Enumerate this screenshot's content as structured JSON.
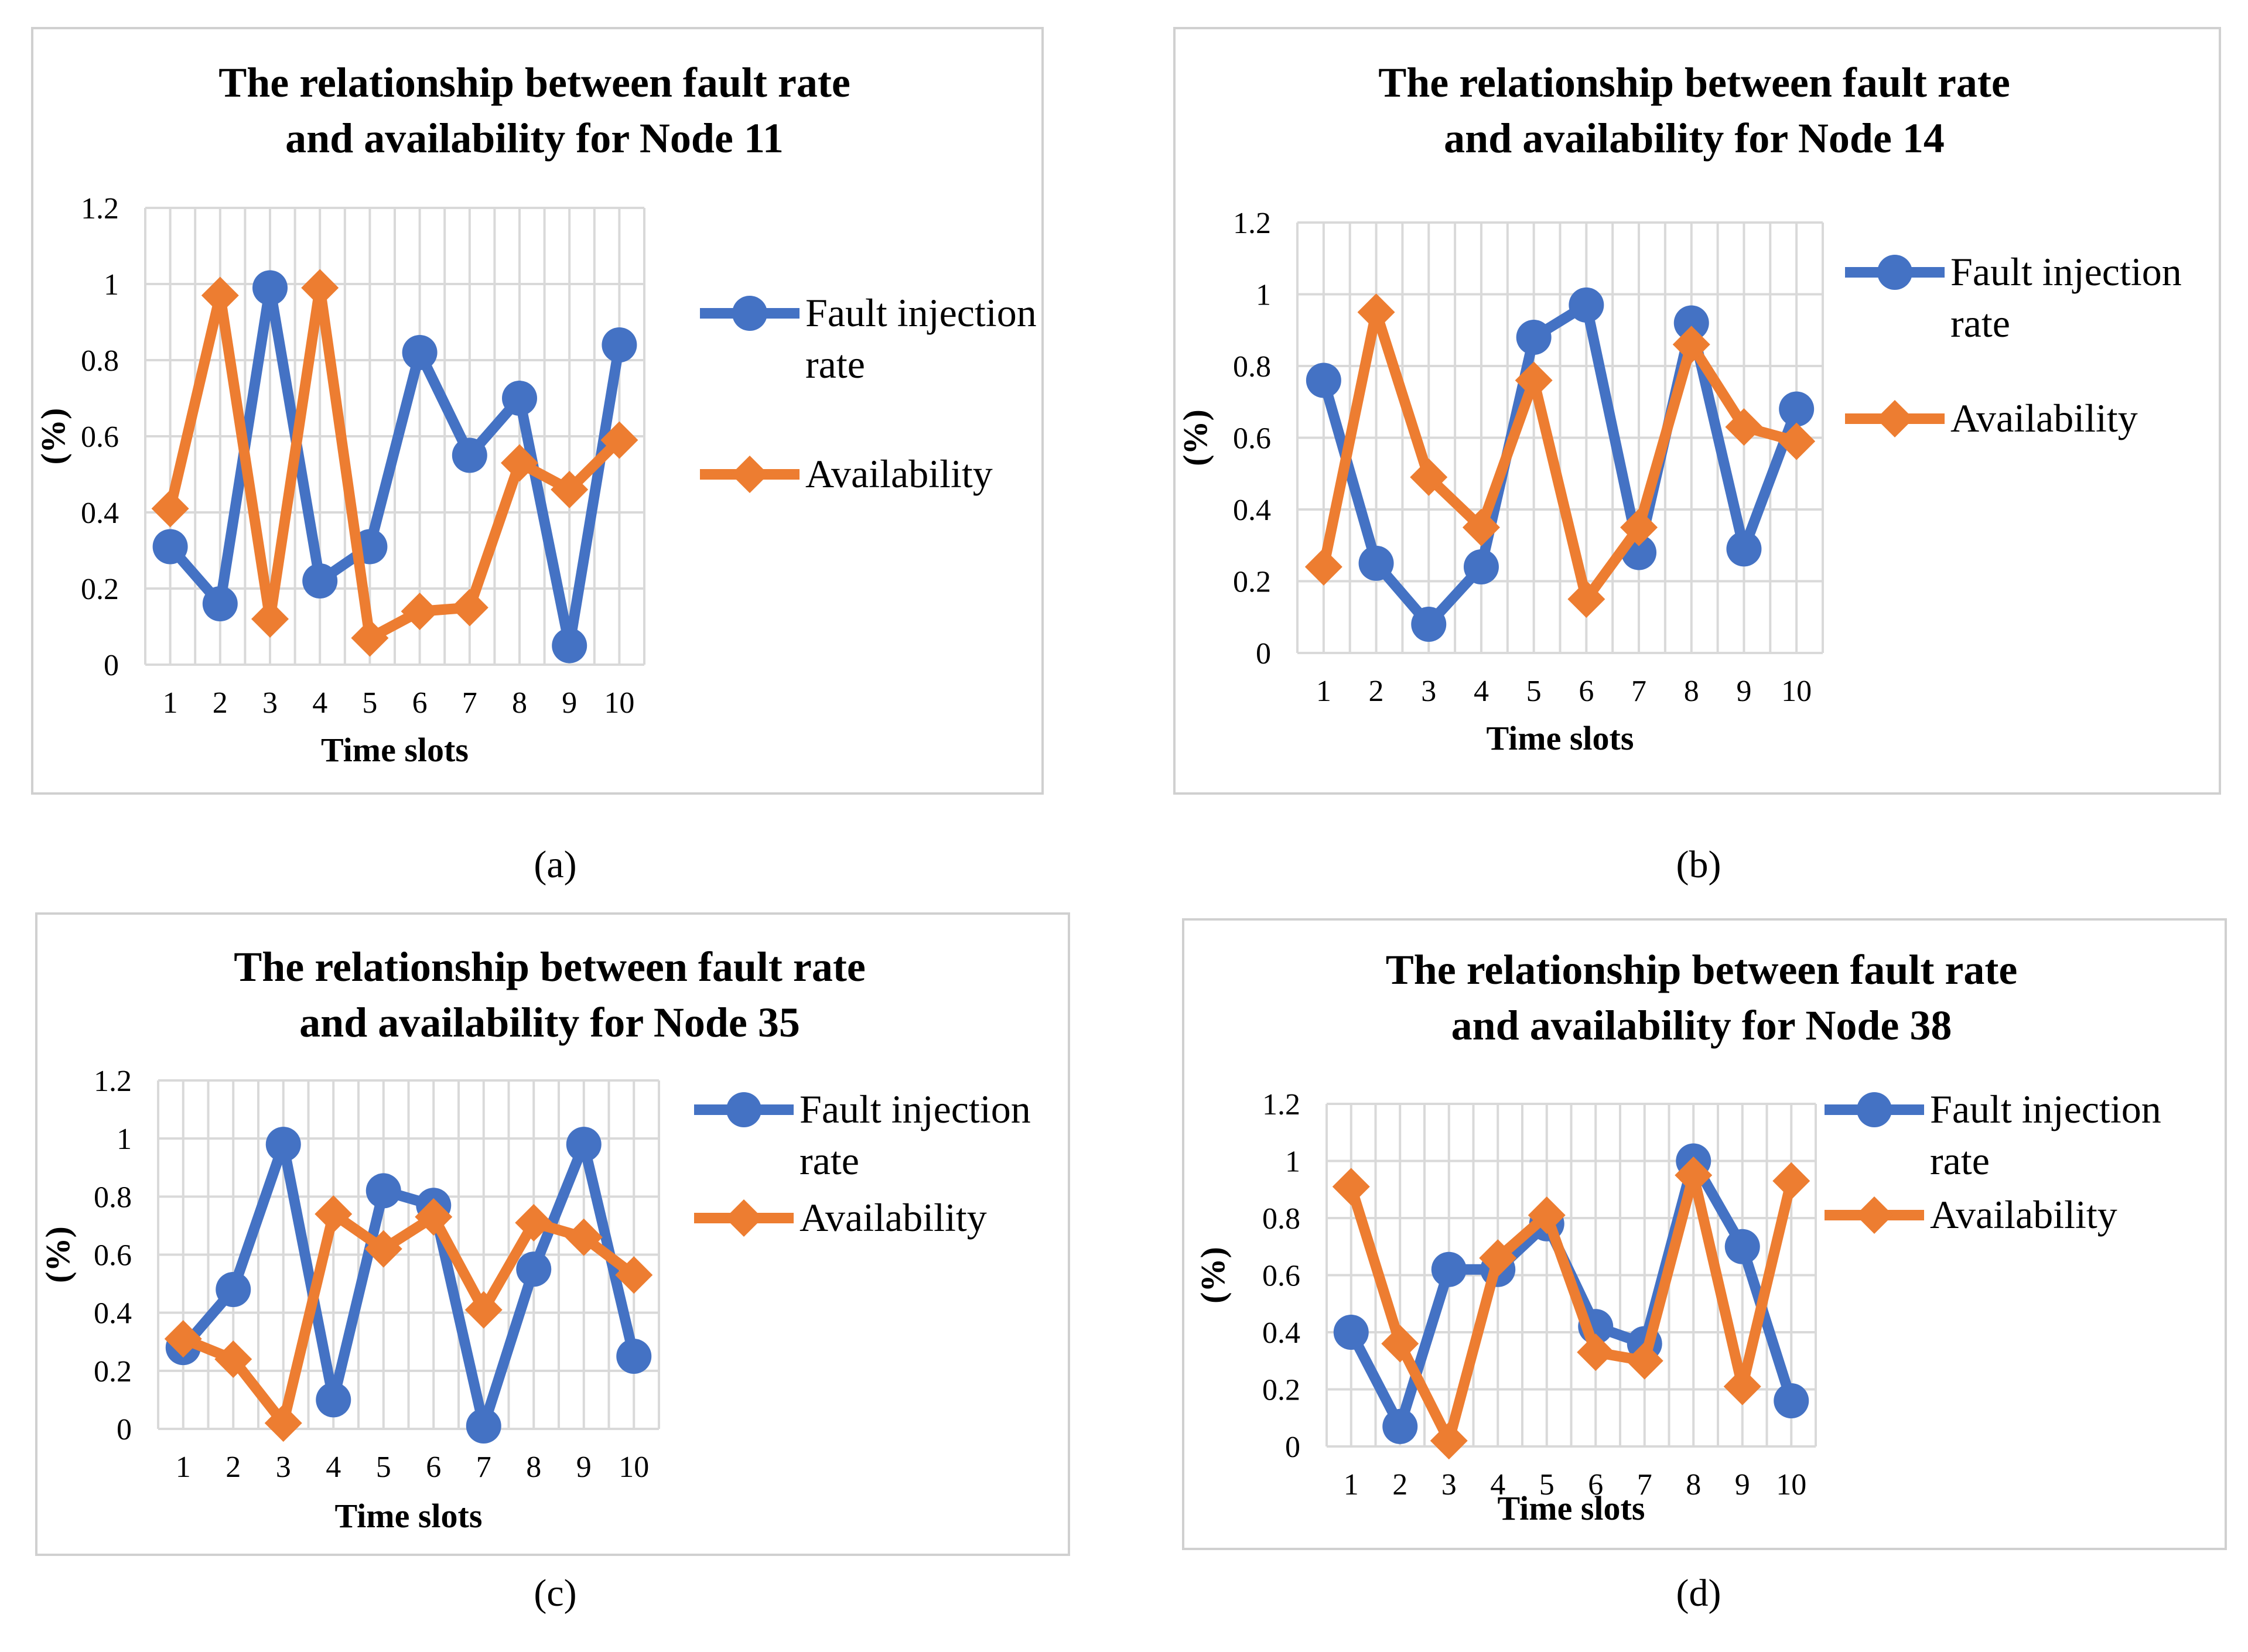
{
  "colors": {
    "fault": "#4472c4",
    "availability": "#ed7d31"
  },
  "chart_data": [
    {
      "type": "line",
      "caption": "(a)",
      "title_lines": [
        "The relationship between fault rate",
        "and availability for Node 11"
      ],
      "xlabel": "Time slots",
      "ylabel": "(%)",
      "categories": [
        "1",
        "2",
        "3",
        "4",
        "5",
        "6",
        "7",
        "8",
        "9",
        "10"
      ],
      "ylim": [
        0,
        1.2
      ],
      "yticks": [
        "0",
        "0.2",
        "0.4",
        "0.6",
        "0.8",
        "1",
        "1.2"
      ],
      "grid": true,
      "legend_position": "right",
      "series": [
        {
          "name_lines": [
            "Fault injection",
            "rate"
          ],
          "color_key": "fault",
          "marker": "circle",
          "values": [
            0.31,
            0.16,
            0.99,
            0.22,
            0.31,
            0.82,
            0.55,
            0.7,
            0.05,
            0.84
          ]
        },
        {
          "name_lines": [
            "Availability"
          ],
          "color_key": "availability",
          "marker": "diamond",
          "values": [
            0.41,
            0.97,
            0.12,
            0.99,
            0.07,
            0.14,
            0.15,
            0.53,
            0.46,
            0.59
          ]
        }
      ]
    },
    {
      "type": "line",
      "caption": "(b)",
      "title_lines": [
        "The relationship between fault rate",
        "and availability for Node 14"
      ],
      "xlabel": "Time slots",
      "ylabel": "(%)",
      "categories": [
        "1",
        "2",
        "3",
        "4",
        "5",
        "6",
        "7",
        "8",
        "9",
        "10"
      ],
      "ylim": [
        0,
        1.2
      ],
      "yticks": [
        "0",
        "0.2",
        "0.4",
        "0.6",
        "0.8",
        "1",
        "1.2"
      ],
      "grid": true,
      "legend_position": "right",
      "series": [
        {
          "name_lines": [
            "Fault injection",
            "rate"
          ],
          "color_key": "fault",
          "marker": "circle",
          "values": [
            0.76,
            0.25,
            0.08,
            0.24,
            0.88,
            0.97,
            0.28,
            0.92,
            0.29,
            0.68
          ]
        },
        {
          "name_lines": [
            "Availability"
          ],
          "color_key": "availability",
          "marker": "diamond",
          "values": [
            0.24,
            0.95,
            0.49,
            0.35,
            0.76,
            0.15,
            0.35,
            0.86,
            0.63,
            0.59
          ]
        }
      ]
    },
    {
      "type": "line",
      "caption": "(c)",
      "title_lines": [
        "The relationship between fault rate",
        "and availability for Node 35"
      ],
      "xlabel": "Time slots",
      "ylabel": "(%)",
      "categories": [
        "1",
        "2",
        "3",
        "4",
        "5",
        "6",
        "7",
        "8",
        "9",
        "10"
      ],
      "ylim": [
        0,
        1.2
      ],
      "yticks": [
        "0",
        "0.2",
        "0.4",
        "0.6",
        "0.8",
        "1",
        "1.2"
      ],
      "grid": true,
      "legend_position": "right",
      "series": [
        {
          "name_lines": [
            "Fault injection",
            "rate"
          ],
          "color_key": "fault",
          "marker": "circle",
          "values": [
            0.28,
            0.48,
            0.98,
            0.1,
            0.82,
            0.77,
            0.01,
            0.55,
            0.98,
            0.25
          ]
        },
        {
          "name_lines": [
            "Availability"
          ],
          "color_key": "availability",
          "marker": "diamond",
          "values": [
            0.31,
            0.24,
            0.02,
            0.74,
            0.62,
            0.73,
            0.41,
            0.71,
            0.66,
            0.53
          ]
        }
      ]
    },
    {
      "type": "line",
      "caption": "(d)",
      "title_lines": [
        "The relationship between fault rate",
        "and availability for Node 38"
      ],
      "xlabel": "Time slots",
      "ylabel": "(%)",
      "categories": [
        "1",
        "2",
        "3",
        "4",
        "5",
        "6",
        "7",
        "8",
        "9",
        "10"
      ],
      "ylim": [
        0,
        1.2
      ],
      "yticks": [
        "0",
        "0.2",
        "0.4",
        "0.6",
        "0.8",
        "1",
        "1.2"
      ],
      "grid": true,
      "legend_position": "right",
      "series": [
        {
          "name_lines": [
            "Fault injection",
            "rate"
          ],
          "color_key": "fault",
          "marker": "circle",
          "values": [
            0.4,
            0.07,
            0.62,
            0.62,
            0.78,
            0.42,
            0.36,
            1.0,
            0.7,
            0.16
          ]
        },
        {
          "name_lines": [
            "Availability"
          ],
          "color_key": "availability",
          "marker": "diamond",
          "values": [
            0.91,
            0.36,
            0.02,
            0.66,
            0.81,
            0.33,
            0.3,
            0.95,
            0.21,
            0.93
          ]
        }
      ]
    }
  ]
}
